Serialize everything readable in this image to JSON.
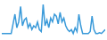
{
  "chart_data": {
    "type": "line",
    "x": [
      0,
      1,
      2,
      3,
      4,
      5,
      6,
      7,
      8,
      9,
      10,
      11,
      12,
      13,
      14,
      15,
      16,
      17,
      18,
      19,
      20,
      21,
      22,
      23,
      24,
      25,
      26,
      27,
      28,
      29,
      30,
      31,
      32,
      33,
      34,
      35,
      36,
      37,
      38,
      39,
      40,
      41,
      42,
      43,
      44,
      45,
      46,
      47,
      48,
      49,
      50,
      51,
      52,
      53,
      54,
      55
    ],
    "values": [
      20,
      20,
      20,
      20,
      20,
      20,
      45,
      70,
      35,
      50,
      90,
      40,
      55,
      60,
      35,
      45,
      30,
      40,
      35,
      50,
      30,
      25,
      95,
      40,
      55,
      35,
      60,
      50,
      70,
      65,
      45,
      75,
      50,
      60,
      40,
      30,
      25,
      30,
      20,
      35,
      25,
      70,
      40,
      20,
      20,
      20,
      20,
      25,
      65,
      30,
      20,
      20,
      22,
      20,
      25,
      30
    ],
    "xlim": [
      0,
      55
    ],
    "ylim": [
      10,
      100
    ],
    "color": "#3a9ad9",
    "tick_labels": false
  }
}
